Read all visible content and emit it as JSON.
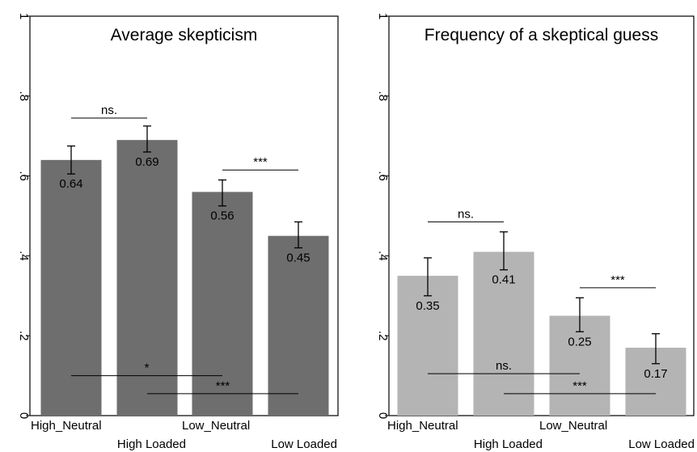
{
  "chart_data": [
    {
      "type": "bar",
      "title": "Average skepticism",
      "categories": [
        "High_Neutral",
        "High  Loaded",
        "Low_Neutral",
        "Low  Loaded"
      ],
      "values": [
        0.64,
        0.69,
        0.56,
        0.45
      ],
      "value_labels": [
        "0.64",
        "0.69",
        "0.56",
        "0.45"
      ],
      "ci_low": [
        0.605,
        0.66,
        0.525,
        0.42
      ],
      "ci_high": [
        0.675,
        0.725,
        0.59,
        0.485
      ],
      "bar_color": "#6e6e6e",
      "ylim": [
        0,
        1
      ],
      "yticks": [
        0,
        0.2,
        0.4,
        0.6,
        0.8,
        1
      ],
      "ytick_labels": [
        "0",
        ".2",
        ".4",
        ".6",
        ".8",
        "1"
      ],
      "significance": [
        {
          "from": 0,
          "to": 1,
          "y": 0.745,
          "label": "ns."
        },
        {
          "from": 2,
          "to": 3,
          "y": 0.615,
          "label": "***"
        },
        {
          "from": 0,
          "to": 2,
          "y": 0.1,
          "label": "*"
        },
        {
          "from": 1,
          "to": 3,
          "y": 0.055,
          "label": "***"
        }
      ]
    },
    {
      "type": "bar",
      "title": "Frequency of a skeptical guess",
      "categories": [
        "High_Neutral",
        "High  Loaded",
        "Low_Neutral",
        "Low  Loaded"
      ],
      "values": [
        0.35,
        0.41,
        0.25,
        0.17
      ],
      "value_labels": [
        "0.35",
        "0.41",
        "0.25",
        "0.17"
      ],
      "ci_low": [
        0.3,
        0.365,
        0.21,
        0.13
      ],
      "ci_high": [
        0.395,
        0.46,
        0.295,
        0.205
      ],
      "bar_color": "#b4b4b4",
      "ylim": [
        0,
        1
      ],
      "yticks": [
        0,
        0.2,
        0.4,
        0.6,
        0.8,
        1
      ],
      "ytick_labels": [
        "0",
        ".2",
        ".4",
        ".6",
        ".8",
        "1"
      ],
      "significance": [
        {
          "from": 0,
          "to": 1,
          "y": 0.485,
          "label": "ns."
        },
        {
          "from": 2,
          "to": 3,
          "y": 0.32,
          "label": "***"
        },
        {
          "from": 0,
          "to": 2,
          "y": 0.105,
          "label": "ns."
        },
        {
          "from": 1,
          "to": 3,
          "y": 0.055,
          "label": "***"
        }
      ]
    }
  ]
}
